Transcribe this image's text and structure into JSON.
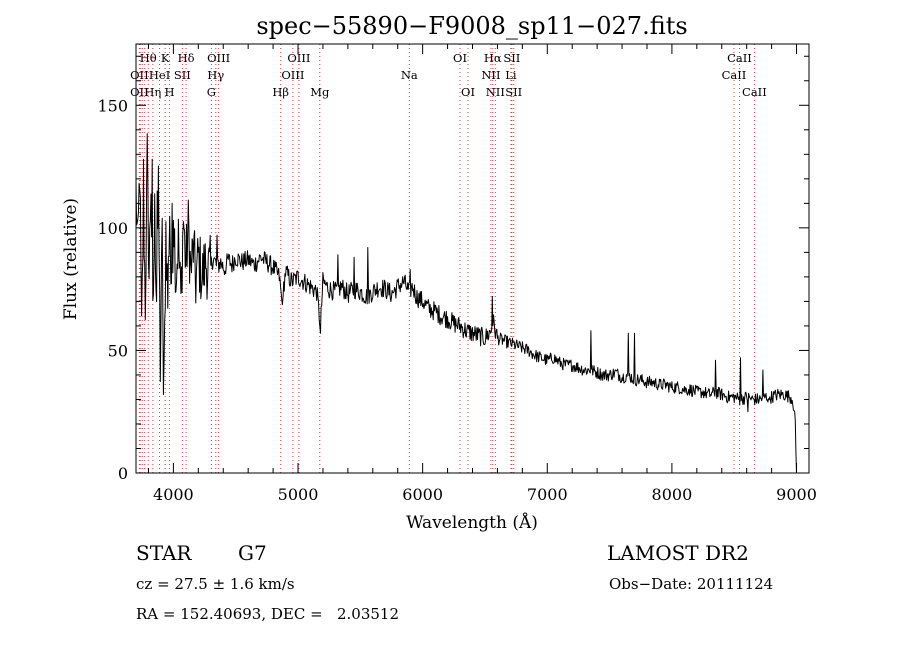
{
  "chart_data": {
    "type": "line",
    "title": "spec−55890−F9008_sp11−027.fits",
    "xlabel": "Wavelength (Å)",
    "ylabel": "Flux (relative)",
    "xlim": [
      3700,
      9100
    ],
    "ylim": [
      0,
      175
    ],
    "x_ticks": [
      4000,
      5000,
      6000,
      7000,
      8000,
      9000
    ],
    "y_ticks": [
      0,
      50,
      100,
      150
    ],
    "grid": false,
    "series": [
      {
        "x": [
          3700,
          3715,
          3730,
          3745,
          3760,
          3775,
          3790,
          3805,
          3820,
          3835,
          3850,
          3865,
          3880,
          3895,
          3910,
          3925,
          3940,
          3955,
          3970,
          3985,
          4000,
          4020,
          4040,
          4060,
          4080,
          4100,
          4120,
          4140,
          4160,
          4180,
          4200,
          4230,
          4260,
          4290,
          4320,
          4350,
          4380,
          4410,
          4440,
          4470,
          4500,
          4550,
          4600,
          4650,
          4700,
          4750,
          4800,
          4850,
          4870,
          4900,
          4950,
          5000,
          5050,
          5100,
          5150,
          5180,
          5200,
          5250,
          5300,
          5350,
          5400,
          5450,
          5500,
          5550,
          5600,
          5650,
          5700,
          5750,
          5800,
          5850,
          5890,
          5920,
          5950,
          6000,
          6050,
          6100,
          6150,
          6200,
          6250,
          6300,
          6350,
          6400,
          6450,
          6500,
          6550,
          6563,
          6600,
          6650,
          6700,
          6750,
          6800,
          6850,
          6900,
          6950,
          7000,
          7050,
          7100,
          7150,
          7200,
          7250,
          7300,
          7350,
          7400,
          7450,
          7500,
          7550,
          7600,
          7650,
          7700,
          7750,
          7800,
          7850,
          7900,
          7950,
          8000,
          8050,
          8100,
          8150,
          8200,
          8250,
          8300,
          8350,
          8400,
          8450,
          8500,
          8550,
          8600,
          8650,
          8700,
          8750,
          8800,
          8850,
          8900,
          8950,
          8970,
          8990,
          9000
        ],
        "y": [
          115,
          90,
          125,
          55,
          110,
          70,
          128,
          80,
          120,
          60,
          105,
          75,
          112,
          45,
          95,
          35,
          100,
          70,
          108,
          65,
          110,
          80,
          95,
          70,
          104,
          85,
          100,
          82,
          92,
          78,
          88,
          80,
          86,
          82,
          88,
          84,
          86,
          83,
          87,
          85,
          88,
          86,
          87,
          85,
          88,
          86,
          84,
          80,
          70,
          82,
          78,
          80,
          78,
          76,
          74,
          60,
          78,
          75,
          74,
          76,
          73,
          75,
          74,
          72,
          74,
          76,
          75,
          73,
          76,
          78,
          74,
          76,
          72,
          70,
          67,
          66,
          64,
          63,
          61,
          60,
          58,
          57,
          56,
          55,
          58,
          62,
          55,
          54,
          53,
          52,
          51,
          50,
          48,
          47,
          46,
          47,
          45,
          44,
          44,
          43,
          42,
          42,
          41,
          40,
          40,
          41,
          39,
          40,
          38,
          38,
          37,
          37,
          36,
          36,
          35,
          35,
          34,
          34,
          33,
          33,
          32,
          33,
          32,
          31,
          31,
          30,
          31,
          30,
          30,
          31,
          31,
          32,
          32,
          31,
          30,
          20,
          0
        ],
        "spikes": [
          {
            "x": 3760,
            "y": 128
          },
          {
            "x": 3830,
            "y": 128
          },
          {
            "x": 3870,
            "y": 115
          },
          {
            "x": 3920,
            "y": 32
          },
          {
            "x": 3990,
            "y": 110
          },
          {
            "x": 4350,
            "y": 97
          },
          {
            "x": 4880,
            "y": 72
          },
          {
            "x": 5180,
            "y": 57
          },
          {
            "x": 5320,
            "y": 89
          },
          {
            "x": 5450,
            "y": 88
          },
          {
            "x": 5560,
            "y": 92
          },
          {
            "x": 5900,
            "y": 83
          },
          {
            "x": 6560,
            "y": 72
          },
          {
            "x": 7350,
            "y": 58
          },
          {
            "x": 7650,
            "y": 57
          },
          {
            "x": 7700,
            "y": 57
          },
          {
            "x": 8350,
            "y": 46
          },
          {
            "x": 8550,
            "y": 47
          },
          {
            "x": 8610,
            "y": 25
          },
          {
            "x": 8730,
            "y": 42
          },
          {
            "x": 8780,
            "y": 30
          }
        ]
      }
    ],
    "spectral_lines": [
      {
        "label": "Hθ",
        "x": 3798,
        "row": 0
      },
      {
        "label": "OII",
        "x": 3727,
        "row": 1
      },
      {
        "label": "OII",
        "x": 3727,
        "row": 2
      },
      {
        "label": "K",
        "x": 3934,
        "row": 0
      },
      {
        "label": "HeI",
        "x": 3889,
        "row": 1
      },
      {
        "label": "Hη",
        "x": 3835,
        "row": 2
      },
      {
        "label": "Hδ",
        "x": 4102,
        "row": 0
      },
      {
        "label": "SII",
        "x": 4072,
        "row": 1
      },
      {
        "label": "H",
        "x": 3969,
        "row": 2
      },
      {
        "label": "OIII",
        "x": 4363,
        "row": 0
      },
      {
        "label": "Hγ",
        "x": 4340,
        "row": 1
      },
      {
        "label": "G",
        "x": 4305,
        "row": 2
      },
      {
        "label": "OIII",
        "x": 5007,
        "row": 0
      },
      {
        "label": "OIII",
        "x": 4959,
        "row": 1
      },
      {
        "label": "Hβ",
        "x": 4861,
        "row": 2
      },
      {
        "label": "Mg",
        "x": 5175,
        "row": 2
      },
      {
        "label": "Na",
        "x": 5893,
        "row": 1
      },
      {
        "label": "OI",
        "x": 6300,
        "row": 0
      },
      {
        "label": "OI",
        "x": 6364,
        "row": 2
      },
      {
        "label": "Hα",
        "x": 6563,
        "row": 0
      },
      {
        "label": "SII",
        "x": 6716,
        "row": 0
      },
      {
        "label": "NII",
        "x": 6548,
        "row": 1
      },
      {
        "label": "Li",
        "x": 6708,
        "row": 1
      },
      {
        "label": "NII",
        "x": 6583,
        "row": 2
      },
      {
        "label": "SII",
        "x": 6731,
        "row": 2
      },
      {
        "label": "CaII",
        "x": 8542,
        "row": 0
      },
      {
        "label": "CaII",
        "x": 8498,
        "row": 1
      },
      {
        "label": "CaII",
        "x": 8662,
        "row": 2
      }
    ],
    "vertical_markers": [
      3727,
      3734,
      3750,
      3770,
      3798,
      3835,
      3889,
      3934,
      3969,
      4072,
      4102,
      4305,
      4340,
      4363,
      4861,
      4959,
      5007,
      5175,
      5893,
      6300,
      6364,
      6548,
      6563,
      6583,
      6708,
      6716,
      6731,
      8498,
      8542,
      8662
    ]
  },
  "info": {
    "obj_class": "STAR",
    "subclass": "G7",
    "survey": "LAMOST DR2",
    "cz": "cz = 27.5 ± 1.6 km/s",
    "obs_date": "Obs−Date: 20111124",
    "radec": "RA = 152.40693, DEC =   2.03512"
  }
}
